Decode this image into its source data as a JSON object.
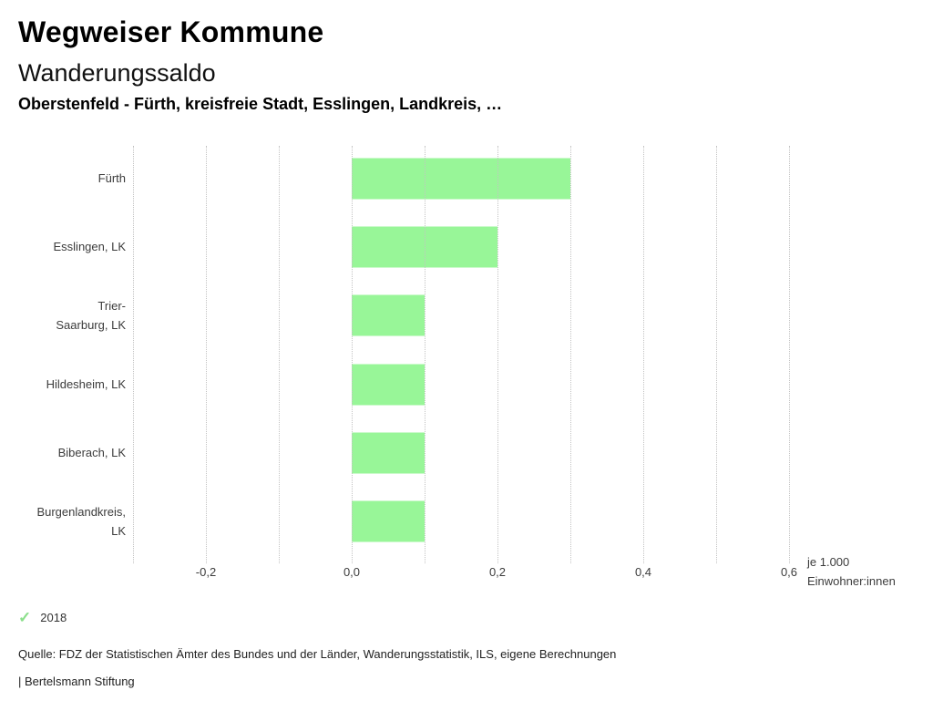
{
  "header": {
    "title": "Wegweiser Kommune",
    "subtitle": "Wanderungssaldo",
    "comparison": "Oberstenfeld - Fürth, kreisfreie Stadt, Esslingen, Landkreis, …"
  },
  "chart_data": {
    "type": "bar",
    "orientation": "horizontal",
    "title": "Wanderungssaldo",
    "categories": [
      "Fürth",
      "Esslingen, LK",
      "Trier-Saarburg, LK",
      "Hildesheim, LK",
      "Biberach, LK",
      "Burgenlandkreis, LK"
    ],
    "category_display_lines": [
      [
        "Fürth"
      ],
      [
        "Esslingen, LK"
      ],
      [
        "Trier-",
        "Saarburg, LK"
      ],
      [
        "Hildesheim, LK"
      ],
      [
        "Biberach, LK"
      ],
      [
        "Burgenlandkreis,",
        "LK"
      ]
    ],
    "series": [
      {
        "name": "2018",
        "values": [
          0.3,
          0.2,
          0.1,
          0.1,
          0.1,
          0.1
        ]
      }
    ],
    "xlabel": "je 1.000 Einwohner:innen",
    "unit_lines": [
      "je 1.000",
      "Einwohner:innen"
    ],
    "xlim": [
      -0.3,
      0.6
    ],
    "x_tick_labels": [
      "-0,2",
      "0,0",
      "0,2",
      "0,4",
      "0,6"
    ],
    "x_tick_values": [
      -0.2,
      0,
      0.2,
      0.4,
      0.6
    ],
    "gridline_step": 0.1,
    "grid": true,
    "bar_color": "#98f698",
    "legend_position": "bottom-left"
  },
  "legend": {
    "items": [
      {
        "label": "2018",
        "icon": "check-icon",
        "color": "#8bdf8b"
      }
    ]
  },
  "footer": {
    "source": "Quelle: FDZ der Statistischen Ämter des Bundes und der Länder, Wanderungsstatistik, ILS, eigene Berechnungen",
    "brand": "| Bertelsmann Stiftung"
  }
}
